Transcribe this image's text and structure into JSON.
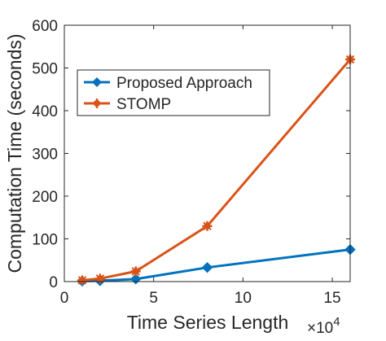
{
  "chart_data": {
    "type": "line",
    "xlabel": "Time Series Length",
    "ylabel": "Computation Time (seconds)",
    "x_multiplier_label": "×10",
    "x_multiplier_exponent": "4",
    "xlim": [
      0,
      16
    ],
    "ylim": [
      0,
      600
    ],
    "xticks": [
      0,
      5,
      10,
      15
    ],
    "yticks": [
      0,
      100,
      200,
      300,
      400,
      500,
      600
    ],
    "grid": false,
    "legend_position": "upper-left",
    "series": [
      {
        "name": "Proposed Approach",
        "color": "#0072BD",
        "marker": "diamond",
        "x": [
          1,
          2,
          4,
          8,
          16
        ],
        "y": [
          1,
          2,
          6,
          33,
          75
        ]
      },
      {
        "name": "STOMP",
        "color": "#D95319",
        "marker": "star",
        "x": [
          1,
          2,
          4,
          8,
          16
        ],
        "y": [
          3,
          7,
          24,
          130,
          520
        ]
      }
    ]
  }
}
